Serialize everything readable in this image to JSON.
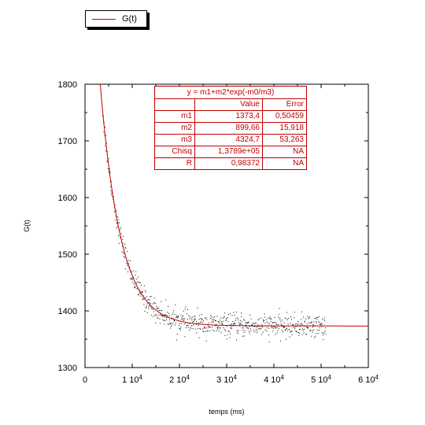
{
  "chart_data": {
    "type": "scatter",
    "xlabel": "temps (ms)",
    "ylabel": "G(t)",
    "xlim": [
      0,
      60000
    ],
    "ylim": [
      1300,
      1800
    ],
    "x_ticks": [
      0,
      10000,
      20000,
      30000,
      40000,
      50000,
      60000
    ],
    "x_tick_labels": [
      {
        "mant": "0",
        "exp": ""
      },
      {
        "mant": "1 10",
        "exp": "4"
      },
      {
        "mant": "2 10",
        "exp": "4"
      },
      {
        "mant": "3 10",
        "exp": "4"
      },
      {
        "mant": "4 10",
        "exp": "4"
      },
      {
        "mant": "5 10",
        "exp": "4"
      },
      {
        "mant": "6 10",
        "exp": "4"
      }
    ],
    "y_ticks": [
      1300,
      1400,
      1500,
      1600,
      1700,
      1800
    ],
    "y_tick_labels": [
      "1300",
      "1400",
      "1500",
      "1600",
      "1700",
      "1800"
    ],
    "grid": false,
    "legend": {
      "position": "top-left",
      "entries": [
        {
          "name": "G(t)",
          "color": "#c00000"
        }
      ]
    },
    "fit": {
      "equation": "y = m1+m2*exp(-m0/m3)",
      "params": {
        "m1": 1373.4,
        "m2": 899.66,
        "m3": 4324.7
      },
      "x_range": [
        3500,
        60000
      ],
      "color": "#c00000"
    },
    "scatter": {
      "x_range": [
        3700,
        51000
      ],
      "noise_sd": 10,
      "count": 700,
      "color": "#000000"
    },
    "fit_table": {
      "equation": "y = m1+m2*exp(-m0/m3)",
      "headers": [
        "",
        "Value",
        "Error"
      ],
      "rows": [
        [
          "m1",
          "1373,4",
          "0,50459"
        ],
        [
          "m2",
          "899,66",
          "15,918"
        ],
        [
          "m3",
          "4324,7",
          "53,263"
        ],
        [
          "Chisq",
          "1,3789e+05",
          "NA"
        ],
        [
          "R",
          "0,98372",
          "NA"
        ]
      ]
    }
  }
}
